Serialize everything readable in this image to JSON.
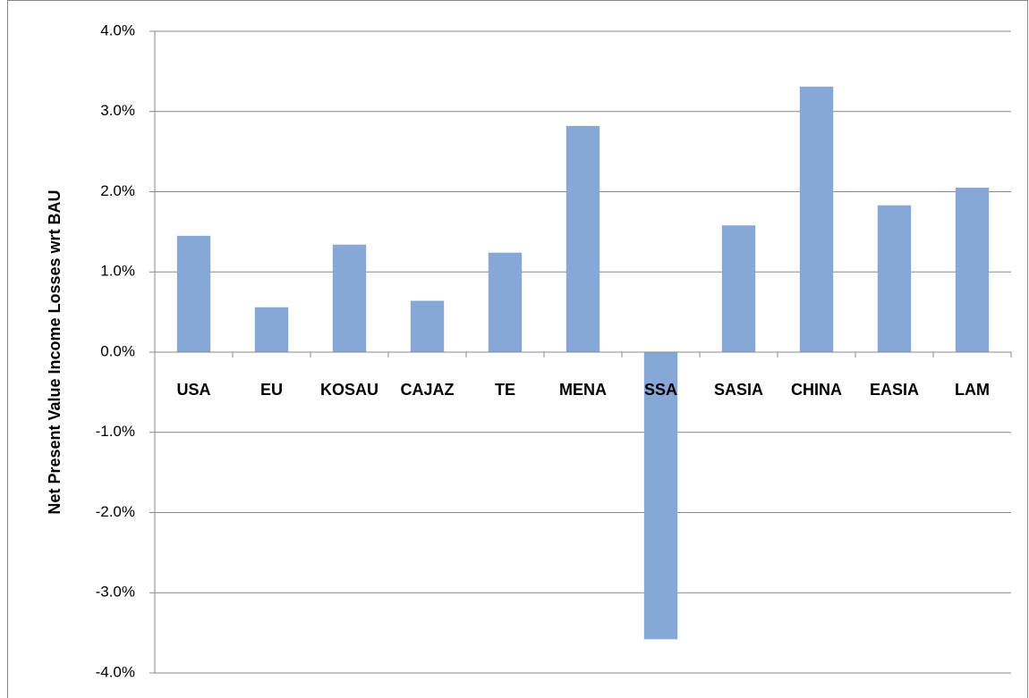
{
  "chart_data": {
    "type": "bar",
    "y_label": "Net Present Value Income Losses wrt BAU",
    "categories": [
      "USA",
      "EU",
      "KOSAU",
      "CAJAZ",
      "TE",
      "MENA",
      "SSA",
      "SASIA",
      "CHINA",
      "EASIA",
      "LAM"
    ],
    "values": [
      1.45,
      0.56,
      1.34,
      0.64,
      1.24,
      2.82,
      -3.58,
      1.58,
      3.31,
      1.83,
      2.05
    ],
    "color": "#87a7d6",
    "ylim": [
      -4,
      4
    ],
    "yticks": [
      {
        "value": -4,
        "label": "-4.0%"
      },
      {
        "value": -3,
        "label": "-3.0%"
      },
      {
        "value": -2,
        "label": "-2.0%"
      },
      {
        "value": -1,
        "label": "-1.0%"
      },
      {
        "value": 0,
        "label": "0.0%"
      },
      {
        "value": 1,
        "label": "1.0%"
      },
      {
        "value": 2,
        "label": "2.0%"
      },
      {
        "value": 3,
        "label": "3.0%"
      },
      {
        "value": 4,
        "label": "4.0%"
      }
    ],
    "grid": true
  }
}
